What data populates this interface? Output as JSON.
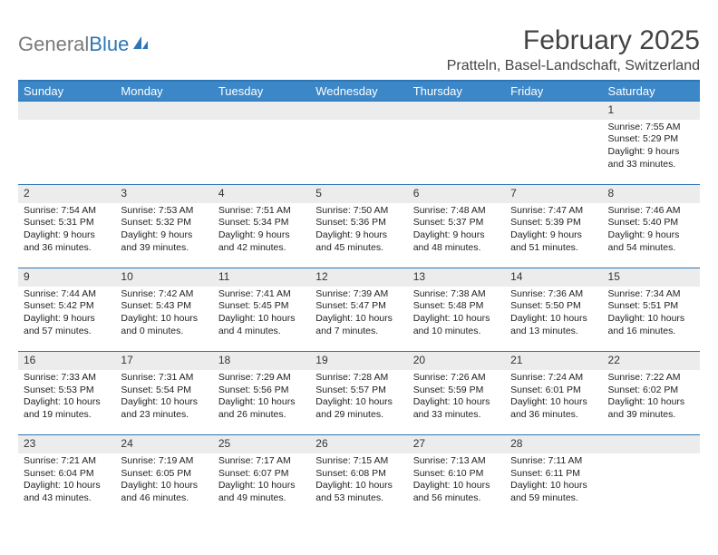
{
  "logo": {
    "gray": "General",
    "blue": "Blue"
  },
  "title": "February 2025",
  "location": "Pratteln, Basel-Landschaft, Switzerland",
  "colors": {
    "header_bg": "#3b87c8",
    "header_border": "#2e75b6",
    "daynum_bg": "#ececec",
    "text": "#222222"
  },
  "weekdays": [
    "Sunday",
    "Monday",
    "Tuesday",
    "Wednesday",
    "Thursday",
    "Friday",
    "Saturday"
  ],
  "weeks": [
    [
      null,
      null,
      null,
      null,
      null,
      null,
      {
        "n": "1",
        "sr": "7:55 AM",
        "ss": "5:29 PM",
        "dl": "9 hours and 33 minutes."
      }
    ],
    [
      {
        "n": "2",
        "sr": "7:54 AM",
        "ss": "5:31 PM",
        "dl": "9 hours and 36 minutes."
      },
      {
        "n": "3",
        "sr": "7:53 AM",
        "ss": "5:32 PM",
        "dl": "9 hours and 39 minutes."
      },
      {
        "n": "4",
        "sr": "7:51 AM",
        "ss": "5:34 PM",
        "dl": "9 hours and 42 minutes."
      },
      {
        "n": "5",
        "sr": "7:50 AM",
        "ss": "5:36 PM",
        "dl": "9 hours and 45 minutes."
      },
      {
        "n": "6",
        "sr": "7:48 AM",
        "ss": "5:37 PM",
        "dl": "9 hours and 48 minutes."
      },
      {
        "n": "7",
        "sr": "7:47 AM",
        "ss": "5:39 PM",
        "dl": "9 hours and 51 minutes."
      },
      {
        "n": "8",
        "sr": "7:46 AM",
        "ss": "5:40 PM",
        "dl": "9 hours and 54 minutes."
      }
    ],
    [
      {
        "n": "9",
        "sr": "7:44 AM",
        "ss": "5:42 PM",
        "dl": "9 hours and 57 minutes."
      },
      {
        "n": "10",
        "sr": "7:42 AM",
        "ss": "5:43 PM",
        "dl": "10 hours and 0 minutes."
      },
      {
        "n": "11",
        "sr": "7:41 AM",
        "ss": "5:45 PM",
        "dl": "10 hours and 4 minutes."
      },
      {
        "n": "12",
        "sr": "7:39 AM",
        "ss": "5:47 PM",
        "dl": "10 hours and 7 minutes."
      },
      {
        "n": "13",
        "sr": "7:38 AM",
        "ss": "5:48 PM",
        "dl": "10 hours and 10 minutes."
      },
      {
        "n": "14",
        "sr": "7:36 AM",
        "ss": "5:50 PM",
        "dl": "10 hours and 13 minutes."
      },
      {
        "n": "15",
        "sr": "7:34 AM",
        "ss": "5:51 PM",
        "dl": "10 hours and 16 minutes."
      }
    ],
    [
      {
        "n": "16",
        "sr": "7:33 AM",
        "ss": "5:53 PM",
        "dl": "10 hours and 19 minutes."
      },
      {
        "n": "17",
        "sr": "7:31 AM",
        "ss": "5:54 PM",
        "dl": "10 hours and 23 minutes."
      },
      {
        "n": "18",
        "sr": "7:29 AM",
        "ss": "5:56 PM",
        "dl": "10 hours and 26 minutes."
      },
      {
        "n": "19",
        "sr": "7:28 AM",
        "ss": "5:57 PM",
        "dl": "10 hours and 29 minutes."
      },
      {
        "n": "20",
        "sr": "7:26 AM",
        "ss": "5:59 PM",
        "dl": "10 hours and 33 minutes."
      },
      {
        "n": "21",
        "sr": "7:24 AM",
        "ss": "6:01 PM",
        "dl": "10 hours and 36 minutes."
      },
      {
        "n": "22",
        "sr": "7:22 AM",
        "ss": "6:02 PM",
        "dl": "10 hours and 39 minutes."
      }
    ],
    [
      {
        "n": "23",
        "sr": "7:21 AM",
        "ss": "6:04 PM",
        "dl": "10 hours and 43 minutes."
      },
      {
        "n": "24",
        "sr": "7:19 AM",
        "ss": "6:05 PM",
        "dl": "10 hours and 46 minutes."
      },
      {
        "n": "25",
        "sr": "7:17 AM",
        "ss": "6:07 PM",
        "dl": "10 hours and 49 minutes."
      },
      {
        "n": "26",
        "sr": "7:15 AM",
        "ss": "6:08 PM",
        "dl": "10 hours and 53 minutes."
      },
      {
        "n": "27",
        "sr": "7:13 AM",
        "ss": "6:10 PM",
        "dl": "10 hours and 56 minutes."
      },
      {
        "n": "28",
        "sr": "7:11 AM",
        "ss": "6:11 PM",
        "dl": "10 hours and 59 minutes."
      },
      null
    ]
  ],
  "labels": {
    "sunrise": "Sunrise: ",
    "sunset": "Sunset: ",
    "daylight": "Daylight: "
  }
}
